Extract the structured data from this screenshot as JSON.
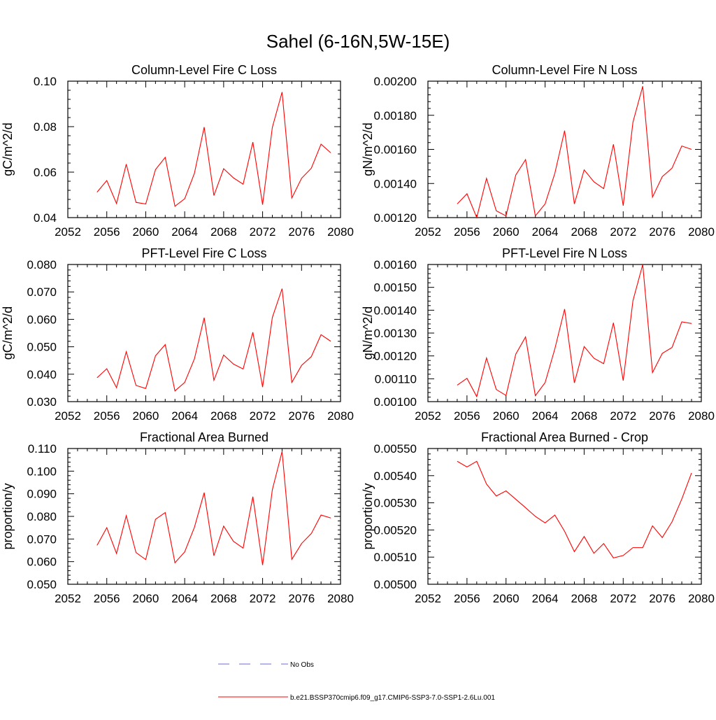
{
  "figure": {
    "title": "Sahel (6-16N,5W-15E)"
  },
  "legend": {
    "items": [
      {
        "label": "No Obs",
        "color": "#6b6bd6",
        "style": "dashed"
      },
      {
        "label": "b.e21.BSSP370cmip6.f09_g17.CMIP6-SSP3-7.0-SSP1-2.6Lu.001",
        "color": "#ff0000",
        "style": "solid"
      }
    ]
  },
  "chart_data": [
    {
      "type": "line",
      "title": "Column-Level Fire C Loss",
      "ylabel": "gC/m^2/d",
      "xlim": [
        2052,
        2080
      ],
      "ylim": [
        0.04,
        0.1
      ],
      "xticks": [
        2052,
        2056,
        2060,
        2064,
        2068,
        2072,
        2076,
        2080
      ],
      "yticks": [
        0.04,
        0.06,
        0.08,
        0.1
      ],
      "ytick_labels": [
        "0.04",
        "0.06",
        "0.08",
        "0.10"
      ],
      "x": [
        2055,
        2056,
        2057,
        2058,
        2059,
        2060,
        2061,
        2062,
        2063,
        2064,
        2065,
        2066,
        2067,
        2068,
        2069,
        2070,
        2071,
        2072,
        2073,
        2074,
        2075,
        2076,
        2077,
        2078,
        2079
      ],
      "series": [
        {
          "name": "b.e21.BSSP370cmip6.f09_g17.CMIP6-SSP3-7.0-SSP1-2.6Lu.001",
          "color": "#ff0000",
          "values": [
            0.0512,
            0.0563,
            0.0462,
            0.0635,
            0.0467,
            0.046,
            0.0611,
            0.0665,
            0.045,
            0.0483,
            0.0595,
            0.0798,
            0.0497,
            0.0615,
            0.0575,
            0.0547,
            0.0732,
            0.0457,
            0.0797,
            0.0952,
            0.0486,
            0.0573,
            0.0617,
            0.0723,
            0.0685
          ]
        }
      ]
    },
    {
      "type": "line",
      "title": "Column-Level Fire N Loss",
      "ylabel": "gN/m^2/d",
      "xlim": [
        2052,
        2080
      ],
      "ylim": [
        0.0012,
        0.002
      ],
      "xticks": [
        2052,
        2056,
        2060,
        2064,
        2068,
        2072,
        2076,
        2080
      ],
      "yticks": [
        0.0012,
        0.0014,
        0.0016,
        0.0018,
        0.002
      ],
      "ytick_labels": [
        "0.00120",
        "0.00140",
        "0.00160",
        "0.00180",
        "0.00200"
      ],
      "x": [
        2055,
        2056,
        2057,
        2058,
        2059,
        2060,
        2061,
        2062,
        2063,
        2064,
        2065,
        2066,
        2067,
        2068,
        2069,
        2070,
        2071,
        2072,
        2073,
        2074,
        2075,
        2076,
        2077,
        2078,
        2079
      ],
      "series": [
        {
          "name": "b.e21.BSSP370cmip6.f09_g17.CMIP6-SSP3-7.0-SSP1-2.6Lu.001",
          "color": "#ff0000",
          "values": [
            0.00128,
            0.00134,
            0.0012,
            0.00143,
            0.00124,
            0.00121,
            0.00145,
            0.00154,
            0.00121,
            0.00128,
            0.00146,
            0.00171,
            0.00128,
            0.00148,
            0.00141,
            0.00137,
            0.00163,
            0.00127,
            0.00176,
            0.00197,
            0.00132,
            0.00144,
            0.00149,
            0.00162,
            0.0016
          ]
        }
      ]
    },
    {
      "type": "line",
      "title": "PFT-Level Fire C Loss",
      "ylabel": "gC/m^2/d",
      "xlim": [
        2052,
        2080
      ],
      "ylim": [
        0.03,
        0.08
      ],
      "xticks": [
        2052,
        2056,
        2060,
        2064,
        2068,
        2072,
        2076,
        2080
      ],
      "yticks": [
        0.03,
        0.04,
        0.05,
        0.06,
        0.07,
        0.08
      ],
      "ytick_labels": [
        "0.030",
        "0.040",
        "0.050",
        "0.060",
        "0.070",
        "0.080"
      ],
      "x": [
        2055,
        2056,
        2057,
        2058,
        2059,
        2060,
        2061,
        2062,
        2063,
        2064,
        2065,
        2066,
        2067,
        2068,
        2069,
        2070,
        2071,
        2072,
        2073,
        2074,
        2075,
        2076,
        2077,
        2078,
        2079
      ],
      "series": [
        {
          "name": "b.e21.BSSP370cmip6.f09_g17.CMIP6-SSP3-7.0-SSP1-2.6Lu.001",
          "color": "#ff0000",
          "values": [
            0.0387,
            0.042,
            0.0351,
            0.0482,
            0.0359,
            0.0348,
            0.0467,
            0.0508,
            0.0339,
            0.037,
            0.0456,
            0.0606,
            0.0378,
            0.047,
            0.0437,
            0.0419,
            0.0553,
            0.0353,
            0.0607,
            0.0712,
            0.037,
            0.0432,
            0.0464,
            0.0544,
            0.052
          ]
        }
      ]
    },
    {
      "type": "line",
      "title": "PFT-Level Fire N Loss",
      "ylabel": "gN/m^2/d",
      "xlim": [
        2052,
        2080
      ],
      "ylim": [
        0.001,
        0.0016
      ],
      "xticks": [
        2052,
        2056,
        2060,
        2064,
        2068,
        2072,
        2076,
        2080
      ],
      "yticks": [
        0.001,
        0.0011,
        0.0012,
        0.0013,
        0.0014,
        0.0015,
        0.0016
      ],
      "ytick_labels": [
        "0.00100",
        "0.00110",
        "0.00120",
        "0.00130",
        "0.00140",
        "0.00150",
        "0.00160"
      ],
      "x": [
        2055,
        2056,
        2057,
        2058,
        2059,
        2060,
        2061,
        2062,
        2063,
        2064,
        2065,
        2066,
        2067,
        2068,
        2069,
        2070,
        2071,
        2072,
        2073,
        2074,
        2075,
        2076,
        2077,
        2078,
        2079
      ],
      "series": [
        {
          "name": "b.e21.BSSP370cmip6.f09_g17.CMIP6-SSP3-7.0-SSP1-2.6Lu.001",
          "color": "#ff0000",
          "values": [
            0.001072,
            0.001102,
            0.001022,
            0.001191,
            0.001053,
            0.001027,
            0.001208,
            0.001283,
            0.001026,
            0.001083,
            0.001231,
            0.001405,
            0.001082,
            0.001241,
            0.00119,
            0.001166,
            0.001345,
            0.001092,
            0.001442,
            0.0016,
            0.001127,
            0.001211,
            0.001237,
            0.001349,
            0.001342
          ]
        }
      ]
    },
    {
      "type": "line",
      "title": "Fractional Area Burned",
      "ylabel": "proportion/y",
      "xlim": [
        2052,
        2080
      ],
      "ylim": [
        0.05,
        0.11
      ],
      "xticks": [
        2052,
        2056,
        2060,
        2064,
        2068,
        2072,
        2076,
        2080
      ],
      "yticks": [
        0.05,
        0.06,
        0.07,
        0.08,
        0.09,
        0.1,
        0.11
      ],
      "ytick_labels": [
        "0.050",
        "0.060",
        "0.070",
        "0.080",
        "0.090",
        "0.100",
        "0.110"
      ],
      "x": [
        2055,
        2056,
        2057,
        2058,
        2059,
        2060,
        2061,
        2062,
        2063,
        2064,
        2065,
        2066,
        2067,
        2068,
        2069,
        2070,
        2071,
        2072,
        2073,
        2074,
        2075,
        2076,
        2077,
        2078,
        2079
      ],
      "series": [
        {
          "name": "b.e21.BSSP370cmip6.f09_g17.CMIP6-SSP3-7.0-SSP1-2.6Lu.001",
          "color": "#ff0000",
          "values": [
            0.0672,
            0.075,
            0.0636,
            0.0803,
            0.064,
            0.0609,
            0.0787,
            0.0817,
            0.0595,
            0.0643,
            0.0752,
            0.0905,
            0.0626,
            0.0757,
            0.069,
            0.066,
            0.0887,
            0.0585,
            0.0918,
            0.1087,
            0.061,
            0.068,
            0.0724,
            0.0806,
            0.0793
          ]
        }
      ]
    },
    {
      "type": "line",
      "title": "Fractional Area Burned - Crop",
      "ylabel": "proportion/y",
      "xlim": [
        2052,
        2080
      ],
      "ylim": [
        0.005,
        0.0055
      ],
      "xticks": [
        2052,
        2056,
        2060,
        2064,
        2068,
        2072,
        2076,
        2080
      ],
      "yticks": [
        0.005,
        0.0051,
        0.0052,
        0.0053,
        0.0054,
        0.0055
      ],
      "ytick_labels": [
        "0.00500",
        "0.00510",
        "0.00520",
        "0.00530",
        "0.00540",
        "0.00550"
      ],
      "x": [
        2055,
        2056,
        2057,
        2058,
        2059,
        2060,
        2061,
        2062,
        2063,
        2064,
        2065,
        2066,
        2067,
        2068,
        2069,
        2070,
        2071,
        2072,
        2073,
        2074,
        2075,
        2076,
        2077,
        2078,
        2079
      ],
      "series": [
        {
          "name": "b.e21.BSSP370cmip6.f09_g17.CMIP6-SSP3-7.0-SSP1-2.6Lu.001",
          "color": "#ff0000",
          "values": [
            0.005453,
            0.005432,
            0.005453,
            0.005369,
            0.005325,
            0.005344,
            0.005313,
            0.005282,
            0.00525,
            0.005226,
            0.005255,
            0.005195,
            0.00512,
            0.005176,
            0.005114,
            0.00515,
            0.005097,
            0.005106,
            0.005135,
            0.005135,
            0.005215,
            0.005172,
            0.00523,
            0.005314,
            0.00541
          ]
        }
      ]
    }
  ]
}
